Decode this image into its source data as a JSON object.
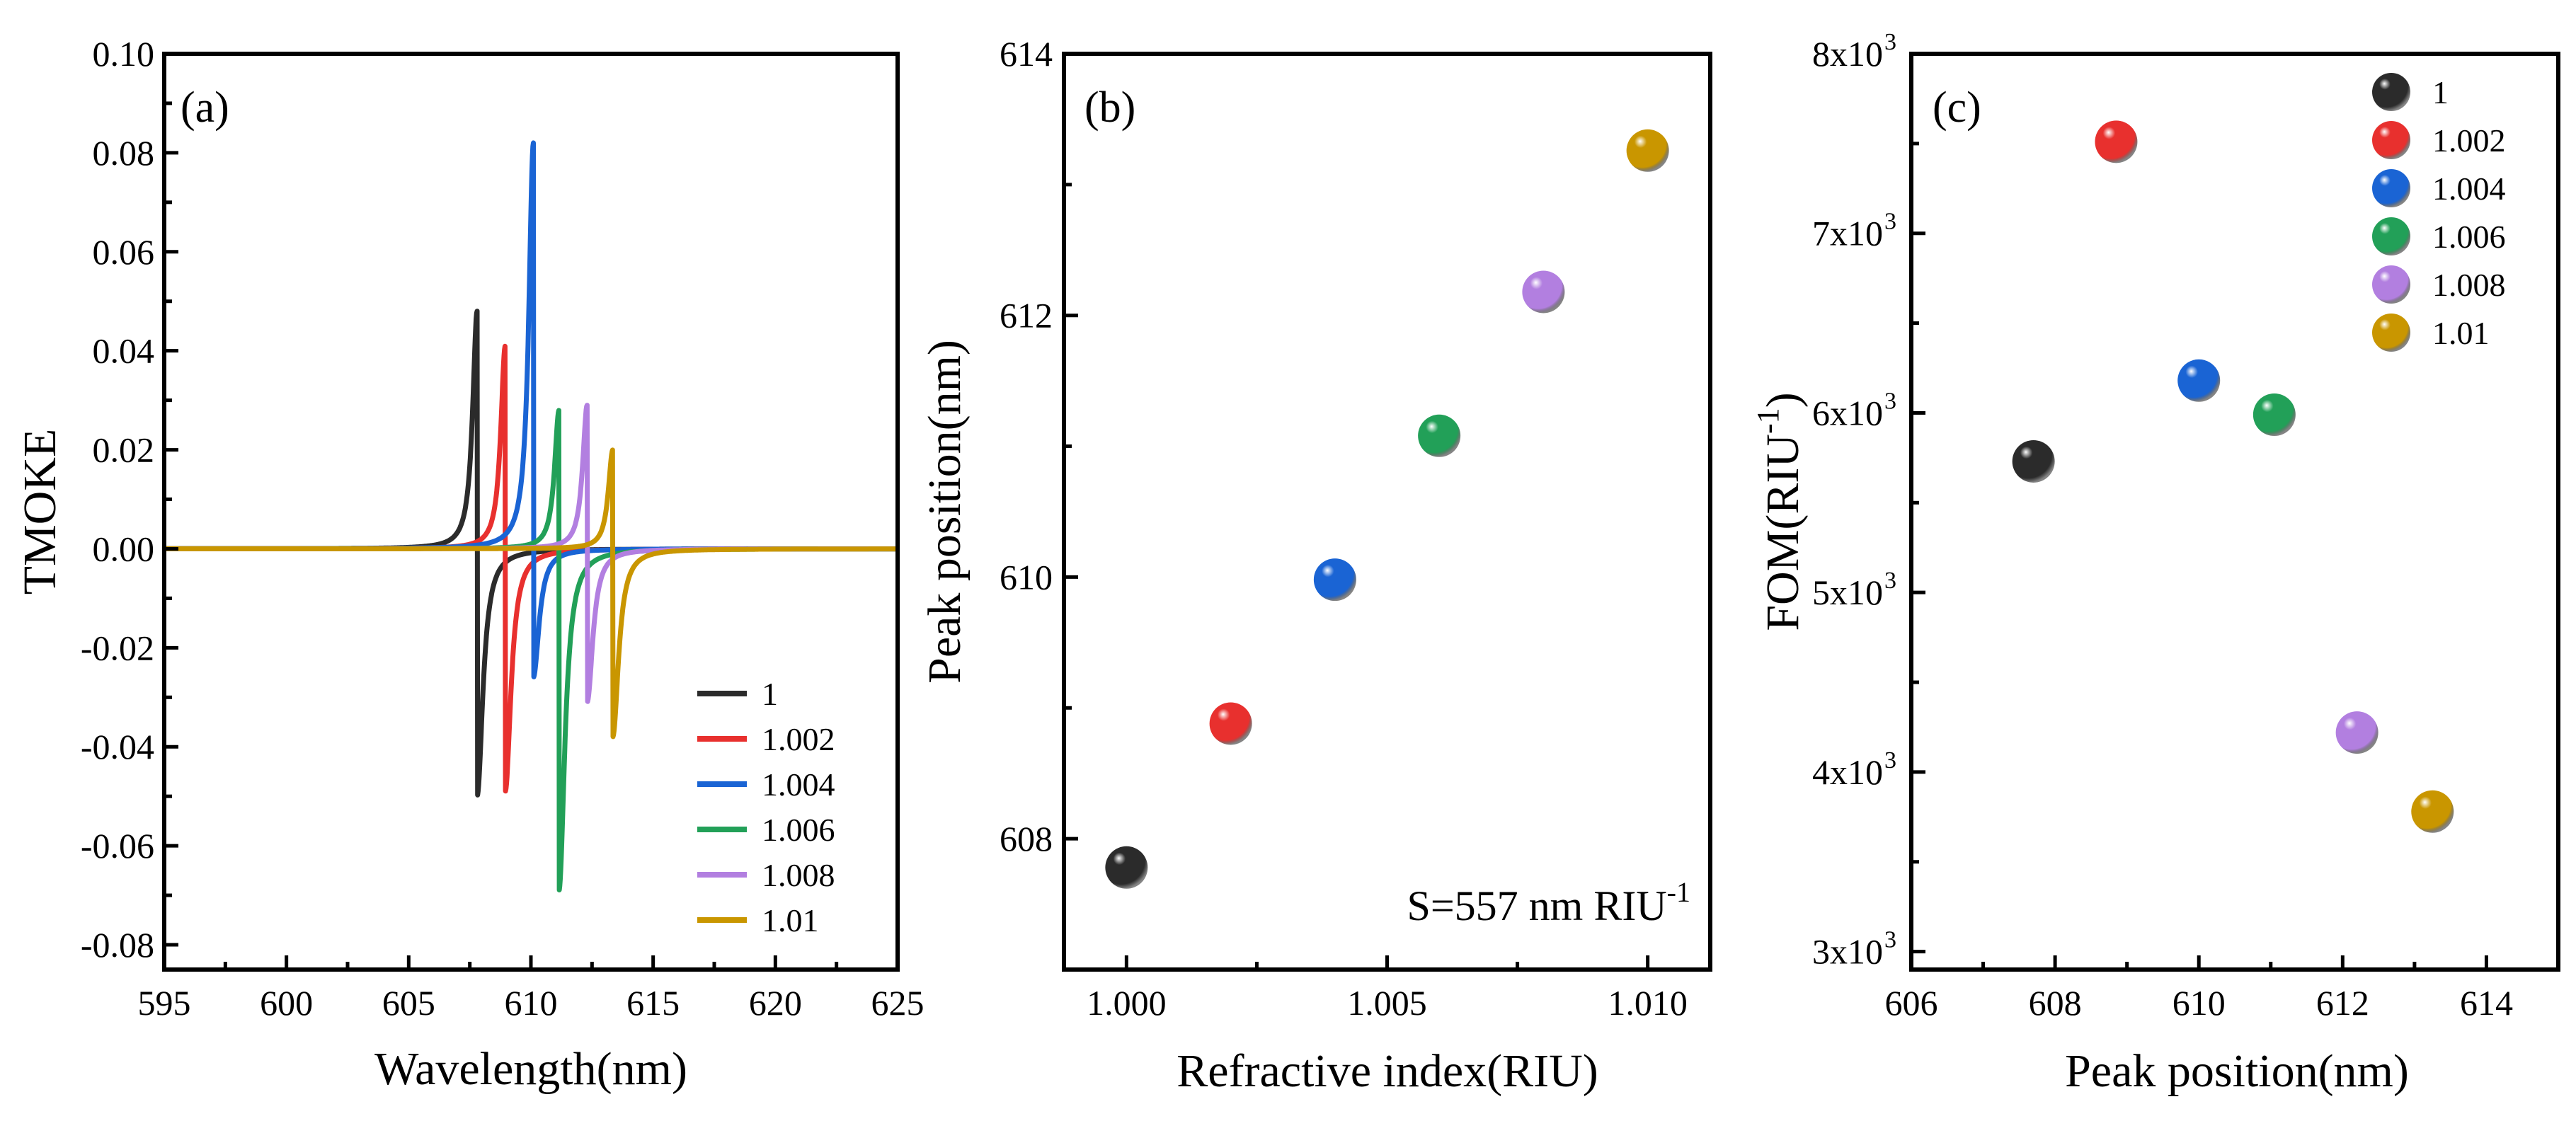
{
  "colors": {
    "1": "#2b2b2b",
    "1.002": "#e8302e",
    "1.004": "#1a64d4",
    "1.006": "#22a058",
    "1.008": "#b27fe0",
    "1.01": "#c99600"
  },
  "chart_data": [
    {
      "id": "a",
      "panel_label": "(a)",
      "type": "line",
      "xlabel": "Wavelength(nm)",
      "ylabel": "TMOKE",
      "xlim": [
        595,
        625
      ],
      "ylim": [
        -0.085,
        0.1
      ],
      "xticks": [
        595,
        600,
        605,
        610,
        615,
        620,
        625
      ],
      "yticks": [
        -0.08,
        -0.06,
        -0.04,
        -0.02,
        0.0,
        0.02,
        0.04,
        0.06,
        0.08,
        0.1
      ],
      "ytick_labels": [
        "-0.08",
        "-0.06",
        "-0.04",
        "-0.02",
        "0.00",
        "0.02",
        "0.04",
        "0.06",
        "0.08",
        "0.10"
      ],
      "legend": "bottom-right",
      "series": [
        {
          "name": "1",
          "resonance": 607.8,
          "max": 0.048,
          "min": -0.05
        },
        {
          "name": "1.002",
          "resonance": 608.95,
          "max": 0.041,
          "min": -0.049
        },
        {
          "name": "1.004",
          "resonance": 610.1,
          "max": 0.082,
          "min": -0.026
        },
        {
          "name": "1.006",
          "resonance": 611.15,
          "max": 0.028,
          "min": -0.069
        },
        {
          "name": "1.008",
          "resonance": 612.3,
          "max": 0.029,
          "min": -0.031
        },
        {
          "name": "1.01",
          "resonance": 613.35,
          "max": 0.02,
          "min": -0.038
        }
      ]
    },
    {
      "id": "b",
      "panel_label": "(b)",
      "type": "scatter",
      "xlabel": "Refractive index(RIU)",
      "ylabel": "Peak position(nm)",
      "xlim": [
        0.9988,
        1.0112
      ],
      "ylim": [
        607,
        614
      ],
      "xticks": [
        1.0,
        1.005,
        1.01
      ],
      "xtick_labels": [
        "1.000",
        "1.005",
        "1.010"
      ],
      "yticks": [
        608,
        610,
        612,
        614
      ],
      "annotation": "S=557 nm RIU",
      "annotation_sup": "-1",
      "points": [
        {
          "label": "1",
          "x": 1.0,
          "y": 607.78
        },
        {
          "label": "1.002",
          "x": 1.002,
          "y": 608.88
        },
        {
          "label": "1.004",
          "x": 1.004,
          "y": 609.98
        },
        {
          "label": "1.006",
          "x": 1.006,
          "y": 611.08
        },
        {
          "label": "1.008",
          "x": 1.008,
          "y": 612.18
        },
        {
          "label": "1.01",
          "x": 1.01,
          "y": 613.26
        }
      ]
    },
    {
      "id": "c",
      "panel_label": "(c)",
      "type": "scatter",
      "xlabel": "Peak position(nm)",
      "ylabel": "FOM(RIU",
      "ylabel_sup": "-1",
      "ylabel_close": ")",
      "xlim": [
        606,
        615
      ],
      "ylim": [
        2900,
        8000
      ],
      "xticks": [
        606,
        608,
        610,
        612,
        614
      ],
      "yticks": [
        3000,
        4000,
        5000,
        6000,
        7000,
        8000
      ],
      "ytick_labels": [
        "3x10",
        "4x10",
        "5x10",
        "6x10",
        "7x10",
        "8x10"
      ],
      "ytick_sup": "3",
      "legend": "top-right",
      "points": [
        {
          "label": "1",
          "x": 607.7,
          "y": 5730
        },
        {
          "label": "1.002",
          "x": 608.85,
          "y": 7510
        },
        {
          "label": "1.004",
          "x": 610.0,
          "y": 6180
        },
        {
          "label": "1.006",
          "x": 611.05,
          "y": 5990
        },
        {
          "label": "1.008",
          "x": 612.2,
          "y": 4220
        },
        {
          "label": "1.01",
          "x": 613.25,
          "y": 3780
        }
      ]
    }
  ]
}
